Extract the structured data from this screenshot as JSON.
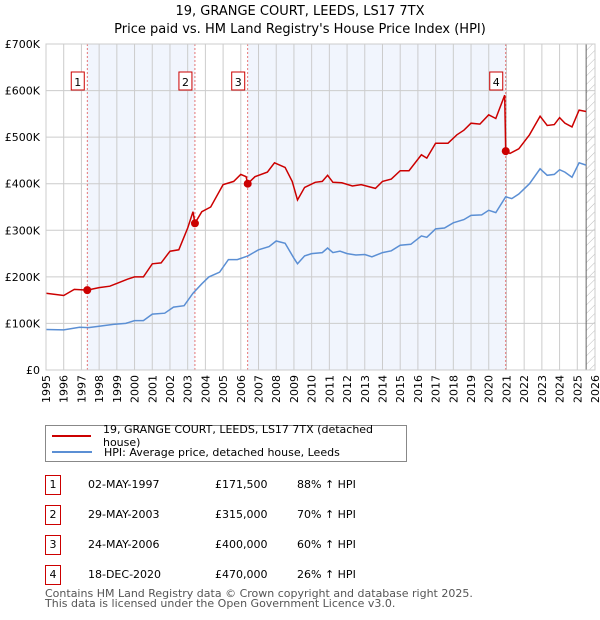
{
  "chart_data": {
    "type": "line",
    "title": "19, GRANGE COURT, LEEDS, LS17 7TX",
    "subtitle": "Price paid vs. HM Land Registry's House Price Index (HPI)",
    "xlim": [
      1995,
      2026
    ],
    "ylim": [
      0,
      700000
    ],
    "y_ticks": [
      {
        "v": 0,
        "label": "£0"
      },
      {
        "v": 100000,
        "label": "£100K"
      },
      {
        "v": 200000,
        "label": "£200K"
      },
      {
        "v": 300000,
        "label": "£300K"
      },
      {
        "v": 400000,
        "label": "£400K"
      },
      {
        "v": 500000,
        "label": "£500K"
      },
      {
        "v": 600000,
        "label": "£600K"
      },
      {
        "v": 700000,
        "label": "£700K"
      }
    ],
    "x_ticks": [
      "1995",
      "1996",
      "1997",
      "1998",
      "1999",
      "2000",
      "2001",
      "2002",
      "2003",
      "2004",
      "2005",
      "2006",
      "2007",
      "2008",
      "2009",
      "2010",
      "2011",
      "2012",
      "2013",
      "2014",
      "2015",
      "2016",
      "2017",
      "2018",
      "2019",
      "2020",
      "2021",
      "2022",
      "2023",
      "2024",
      "2025",
      "2026"
    ],
    "grid": true,
    "forecast_hatch_from": 2025.5,
    "shaded_periods": [
      [
        1997.33,
        2003.41
      ],
      [
        2006.39,
        2020.96
      ]
    ],
    "series": [
      {
        "name": "19, GRANGE COURT, LEEDS, LS17 7TX (detached house)",
        "color": "#cc0000",
        "x": [
          1995,
          1996,
          1996.6,
          1997.33,
          1998,
          1998.6,
          1999,
          1999.6,
          2000,
          2000.5,
          2001,
          2001.5,
          2002,
          2002.5,
          2003,
          2003.3,
          2003.41,
          2003.8,
          2004.3,
          2005,
          2005.6,
          2006,
          2006.3,
          2006.39,
          2006.8,
          2007.5,
          2007.9,
          2008.5,
          2008.9,
          2009.2,
          2009.6,
          2010.2,
          2010.6,
          2010.9,
          2011.2,
          2011.7,
          2012.3,
          2012.8,
          2013.3,
          2013.6,
          2014,
          2014.5,
          2015,
          2015.5,
          2016.2,
          2016.5,
          2017,
          2017.7,
          2018.2,
          2018.6,
          2019,
          2019.5,
          2020,
          2020.4,
          2020.9,
          2020.96,
          2021.2,
          2021.7,
          2022.3,
          2022.9,
          2023.3,
          2023.7,
          2024,
          2024.3,
          2024.7,
          2025.1,
          2025.5
        ],
        "y": [
          165000,
          160000,
          173000,
          171500,
          177000,
          180000,
          186000,
          195000,
          200000,
          200000,
          228000,
          230000,
          255000,
          258000,
          305000,
          340000,
          315000,
          340000,
          350000,
          398000,
          405000,
          420000,
          415000,
          400000,
          415000,
          425000,
          445000,
          435000,
          405000,
          365000,
          392000,
          403000,
          405000,
          418000,
          403000,
          402000,
          395000,
          398000,
          393000,
          390000,
          405000,
          410000,
          428000,
          428000,
          462000,
          455000,
          487000,
          487000,
          505000,
          515000,
          530000,
          528000,
          548000,
          540000,
          590000,
          470000,
          465000,
          475000,
          505000,
          545000,
          525000,
          527000,
          542000,
          530000,
          522000,
          558000,
          555000
        ]
      },
      {
        "name": "HPI: Average price, detached house, Leeds",
        "color": "#5b8fd4",
        "x": [
          1995,
          1996,
          1996.9,
          1997.4,
          1998,
          1998.8,
          1999.5,
          2000,
          2000.5,
          2001,
          2001.7,
          2002.2,
          2002.8,
          2003.3,
          2003.8,
          2004.2,
          2004.8,
          2005.3,
          2005.8,
          2006.4,
          2007,
          2007.6,
          2008,
          2008.5,
          2009,
          2009.2,
          2009.6,
          2010,
          2010.6,
          2010.9,
          2011.2,
          2011.6,
          2012,
          2012.5,
          2013,
          2013.4,
          2014,
          2014.5,
          2015,
          2015.6,
          2016.2,
          2016.5,
          2017,
          2017.5,
          2018,
          2018.6,
          2019,
          2019.6,
          2020,
          2020.4,
          2020.96,
          2021.3,
          2021.7,
          2022.3,
          2022.9,
          2023.3,
          2023.7,
          2024,
          2024.3,
          2024.7,
          2025.1,
          2025.5
        ],
        "y": [
          87000,
          86000,
          92000,
          91000,
          94000,
          98000,
          100000,
          106000,
          106000,
          120000,
          122000,
          135000,
          138000,
          165000,
          185000,
          200000,
          210000,
          237000,
          237000,
          245000,
          258000,
          265000,
          277000,
          272000,
          240000,
          228000,
          245000,
          250000,
          252000,
          262000,
          252000,
          255000,
          250000,
          247000,
          248000,
          243000,
          252000,
          256000,
          268000,
          270000,
          288000,
          285000,
          303000,
          305000,
          316000,
          323000,
          332000,
          333000,
          343000,
          338000,
          372000,
          368000,
          378000,
          400000,
          432000,
          418000,
          420000,
          430000,
          425000,
          414000,
          445000,
          440000
        ]
      }
    ],
    "sales": [
      {
        "id": "1",
        "x": 1997.33,
        "date": "02-MAY-1997",
        "price": 171500,
        "price_label": "£171,500",
        "hpi": "88% ↑ HPI"
      },
      {
        "id": "2",
        "x": 2003.41,
        "date": "29-MAY-2003",
        "price": 315000,
        "price_label": "£315,000",
        "hpi": "70% ↑ HPI"
      },
      {
        "id": "3",
        "x": 2006.39,
        "date": "24-MAY-2006",
        "price": 400000,
        "price_label": "£400,000",
        "hpi": "60% ↑ HPI"
      },
      {
        "id": "4",
        "x": 2020.96,
        "date": "18-DEC-2020",
        "price": 470000,
        "price_label": "£470,000",
        "hpi": "26% ↑ HPI"
      }
    ]
  },
  "legend": {
    "property": "19, GRANGE COURT, LEEDS, LS17 7TX (detached house)",
    "hpi": "HPI: Average price, detached house, Leeds"
  },
  "footer": {
    "line1": "Contains HM Land Registry data © Crown copyright and database right 2025.",
    "line2": "This data is licensed under the Open Government Licence v3.0."
  }
}
